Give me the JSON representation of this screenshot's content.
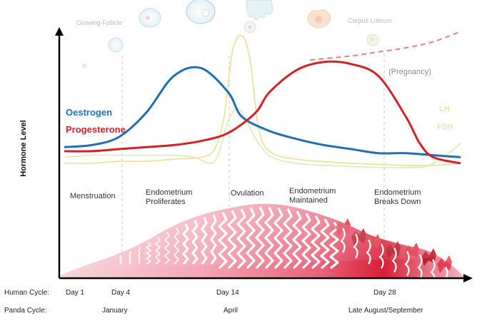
{
  "y_axis_label": "Hormone Level",
  "hormones": {
    "oestrogen": {
      "label": "Oestrogen",
      "color": "#1f6fb3"
    },
    "progesterone": {
      "label": "Progesterone",
      "color": "#d61f26"
    },
    "lh": {
      "label": "LH",
      "color": "#f0e0a0"
    },
    "fsh": {
      "label": "FSH",
      "color": "#d8ecb8"
    },
    "pregnancy": {
      "label": "(Pregnancy)",
      "color": "#e88080"
    }
  },
  "follicle_stages": {
    "growing_follicle": "Growing Follicle",
    "corpus_luteum": "Corpus Luteum"
  },
  "phases": {
    "menstruation": "Menstruation",
    "proliferates_1": "Endometrium",
    "proliferates_2": "Proliferates",
    "ovulation": "Ovulation",
    "maintained_1": "Endometrium",
    "maintained_2": "Maintained",
    "breaks_1": "Endometrium",
    "breaks_2": "Breaks Down"
  },
  "human_cycle": {
    "label": "Human Cycle:",
    "ticks": [
      "Day 1",
      "Day 4",
      "Day 14",
      "Day 28"
    ]
  },
  "panda_cycle": {
    "label": "Panda Cycle:",
    "ticks": [
      "January",
      "April",
      "Late August/September"
    ]
  },
  "chart_data": {
    "type": "line",
    "ylabel": "Hormone Level",
    "x_domain": [
      1,
      30
    ],
    "y_domain": [
      0,
      100
    ],
    "series": [
      {
        "name": "Oestrogen",
        "color": "#1f6fb3",
        "x": [
          1,
          3,
          5,
          7,
          9,
          11,
          13,
          14,
          16,
          18,
          20,
          22,
          24,
          26,
          28,
          30
        ],
        "y": [
          45,
          46,
          50,
          62,
          80,
          84,
          72,
          60,
          53,
          49,
          46,
          44,
          42,
          42,
          41,
          40
        ]
      },
      {
        "name": "Progesterone",
        "color": "#d61f26",
        "x": [
          1,
          3,
          5,
          7,
          9,
          11,
          13,
          15,
          16,
          18,
          20,
          22,
          24,
          26,
          27,
          28,
          30
        ],
        "y": [
          43,
          43,
          44,
          45,
          46,
          48,
          52,
          62,
          72,
          83,
          87,
          86,
          80,
          60,
          47,
          40,
          37
        ]
      },
      {
        "name": "LH",
        "color": "#f0e0a0",
        "x": [
          1,
          3,
          5,
          7,
          9,
          11,
          12,
          12.7,
          13.3,
          14,
          14.6,
          15.2,
          16,
          18,
          22,
          26,
          28,
          30
        ],
        "y": [
          37,
          37,
          38,
          38,
          39,
          40,
          44,
          60,
          92,
          100,
          88,
          55,
          43,
          39,
          37,
          36,
          36,
          37
        ]
      },
      {
        "name": "FSH",
        "color": "#d8ecb8",
        "x": [
          1,
          3,
          5,
          7,
          9,
          10.5,
          12,
          13,
          13.7,
          14.4,
          15.2,
          16.2,
          18,
          20,
          24,
          27,
          28,
          29.5,
          30
        ],
        "y": [
          40,
          41,
          41,
          41,
          41,
          40,
          38,
          58,
          64,
          57,
          47,
          40,
          37,
          36,
          35,
          35,
          37,
          44,
          47
        ]
      },
      {
        "name": "(Pregnancy)",
        "color": "#e88080",
        "x": [
          19,
          22,
          24,
          26,
          28,
          30
        ],
        "y": [
          88,
          90,
          92,
          94,
          97,
          102
        ]
      }
    ]
  }
}
